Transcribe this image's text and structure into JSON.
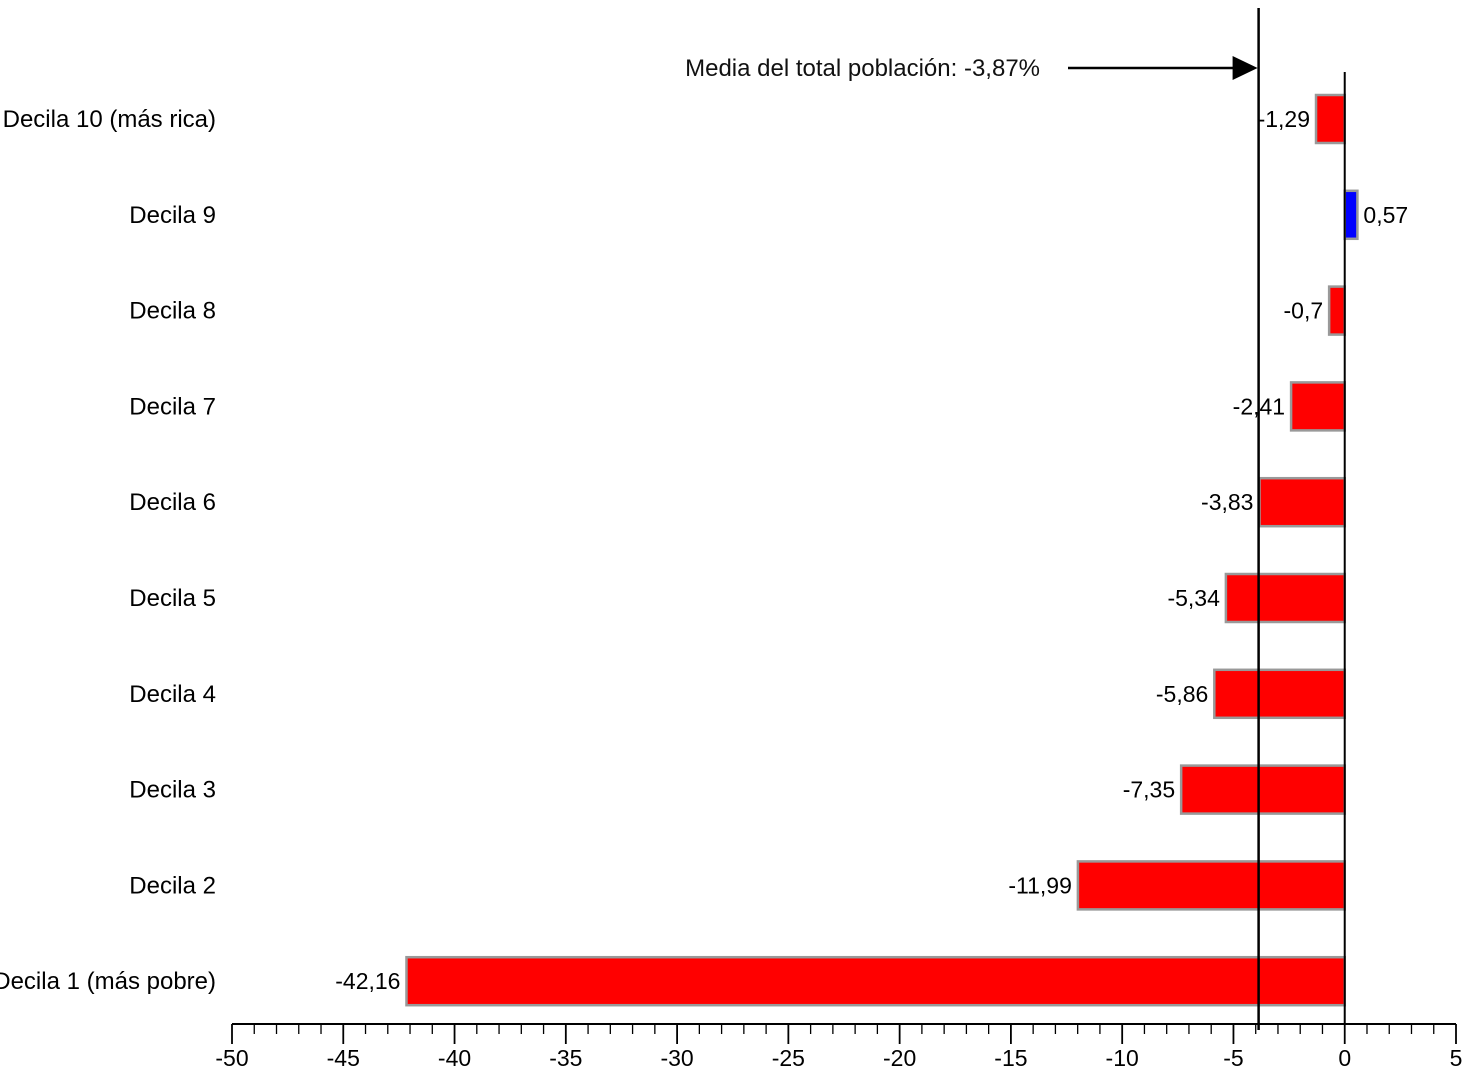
{
  "chart_data": {
    "type": "bar",
    "orientation": "horizontal",
    "categories": [
      "Decila 1 (más pobre)",
      "Decila 2",
      "Decila 3",
      "Decila 4",
      "Decila 5",
      "Decila 6",
      "Decila 7",
      "Decila 8",
      "Decila 9",
      "Decila 10 (más rica)"
    ],
    "values": [
      -42.16,
      -11.99,
      -7.35,
      -5.86,
      -5.34,
      -3.83,
      -2.41,
      -0.7,
      0.57,
      -1.29
    ],
    "value_labels": [
      "-42,16",
      "-11,99",
      "-7,35",
      "-5,86",
      "-5,34",
      "-3,83",
      "-2,41",
      "-0,7",
      "0,57",
      "-1,29"
    ],
    "xlim": [
      -50,
      5
    ],
    "xticks": [
      -50,
      -45,
      -40,
      -35,
      -30,
      -25,
      -20,
      -15,
      -10,
      -5,
      0,
      5
    ],
    "xtick_labels": [
      "-50",
      "-45",
      "-40",
      "-35",
      "-30",
      "-25",
      "-20",
      "-15",
      "-10",
      "-5",
      "0",
      "5"
    ],
    "colors": {
      "negative": "#ff0000",
      "positive": "#0000ff",
      "bar_border": "#999999"
    },
    "reference_line": {
      "value": -3.87,
      "label": "Media del total población: -3,87%"
    },
    "grid": false,
    "legend": "none"
  }
}
